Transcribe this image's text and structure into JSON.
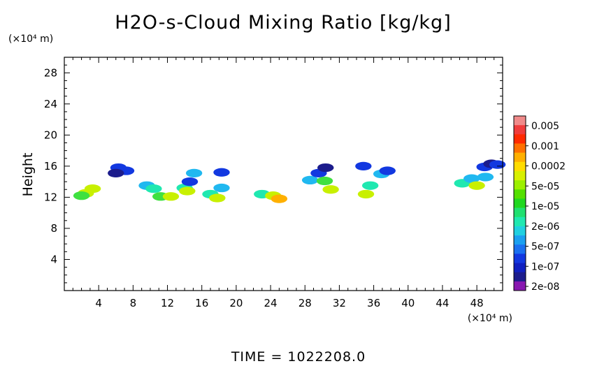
{
  "chart_data": {
    "type": "heatmap",
    "title": "H2O-s-Cloud Mixing Ratio [kg/kg]",
    "xlabel": "",
    "ylabel": "Height",
    "x_unit": "(×10⁴ m)",
    "y_unit": "(×10⁴ m)",
    "xlim": [
      0,
      51
    ],
    "ylim": [
      0,
      30
    ],
    "x_ticks": [
      4,
      8,
      12,
      16,
      20,
      24,
      28,
      32,
      36,
      40,
      44,
      48
    ],
    "y_ticks": [
      4,
      8,
      12,
      16,
      20,
      24,
      28
    ],
    "grid": false,
    "footer": "TIME = 1022208.0",
    "colorbar": {
      "placement": "right",
      "labels": [
        "0.005",
        "0.001",
        "0.0002",
        "5e-05",
        "1e-05",
        "2e-06",
        "5e-07",
        "1e-07",
        "2e-08"
      ],
      "colors": [
        "#f08a8a",
        "#f03c3c",
        "#ff2a00",
        "#ff7000",
        "#ffb000",
        "#ffdc00",
        "#d8f000",
        "#9cf000",
        "#54e000",
        "#20d820",
        "#20e070",
        "#20e8b0",
        "#20d0e0",
        "#1aa0f0",
        "#1a70f0",
        "#1238e0",
        "#1020c0",
        "#1c1c8c",
        "#8818b0"
      ]
    },
    "cells": [
      {
        "x": 2.5,
        "y": 12.5,
        "v": "5e-05"
      },
      {
        "x": 3.3,
        "y": 13.1,
        "v": "5e-05"
      },
      {
        "x": 2.0,
        "y": 12.2,
        "v": "1e-05"
      },
      {
        "x": 6.3,
        "y": 15.8,
        "v": "1e-07"
      },
      {
        "x": 7.2,
        "y": 15.4,
        "v": "1e-07"
      },
      {
        "x": 6.0,
        "y": 15.1,
        "v": "2e-08"
      },
      {
        "x": 9.6,
        "y": 13.5,
        "v": "5e-07"
      },
      {
        "x": 10.4,
        "y": 13.1,
        "v": "2e-06"
      },
      {
        "x": 11.2,
        "y": 12.1,
        "v": "1e-05"
      },
      {
        "x": 12.4,
        "y": 12.1,
        "v": "5e-05"
      },
      {
        "x": 14.0,
        "y": 13.2,
        "v": "2e-06"
      },
      {
        "x": 14.6,
        "y": 14.0,
        "v": "1e-07"
      },
      {
        "x": 14.3,
        "y": 12.8,
        "v": "5e-05"
      },
      {
        "x": 15.1,
        "y": 15.1,
        "v": "5e-07"
      },
      {
        "x": 17.0,
        "y": 12.4,
        "v": "2e-06"
      },
      {
        "x": 17.8,
        "y": 11.9,
        "v": "5e-05"
      },
      {
        "x": 18.3,
        "y": 15.2,
        "v": "1e-07"
      },
      {
        "x": 18.3,
        "y": 13.2,
        "v": "5e-07"
      },
      {
        "x": 23.0,
        "y": 12.4,
        "v": "2e-06"
      },
      {
        "x": 24.3,
        "y": 12.2,
        "v": "5e-05"
      },
      {
        "x": 25.0,
        "y": 11.8,
        "v": "0.0002"
      },
      {
        "x": 28.6,
        "y": 14.2,
        "v": "5e-07"
      },
      {
        "x": 29.6,
        "y": 15.1,
        "v": "1e-07"
      },
      {
        "x": 30.3,
        "y": 14.1,
        "v": "1e-05"
      },
      {
        "x": 31.0,
        "y": 13.0,
        "v": "5e-05"
      },
      {
        "x": 30.4,
        "y": 15.8,
        "v": "2e-08"
      },
      {
        "x": 34.8,
        "y": 16.0,
        "v": "1e-07"
      },
      {
        "x": 35.6,
        "y": 13.5,
        "v": "2e-06"
      },
      {
        "x": 36.9,
        "y": 15.0,
        "v": "5e-07"
      },
      {
        "x": 37.6,
        "y": 15.4,
        "v": "1e-07"
      },
      {
        "x": 35.1,
        "y": 12.4,
        "v": "5e-05"
      },
      {
        "x": 46.3,
        "y": 13.8,
        "v": "2e-06"
      },
      {
        "x": 47.4,
        "y": 14.4,
        "v": "5e-07"
      },
      {
        "x": 48.0,
        "y": 13.5,
        "v": "5e-05"
      },
      {
        "x": 48.9,
        "y": 15.9,
        "v": "1e-07"
      },
      {
        "x": 49.7,
        "y": 16.3,
        "v": "2e-08"
      },
      {
        "x": 50.4,
        "y": 16.2,
        "v": "1e-07"
      },
      {
        "x": 49.0,
        "y": 14.6,
        "v": "5e-07"
      }
    ]
  }
}
